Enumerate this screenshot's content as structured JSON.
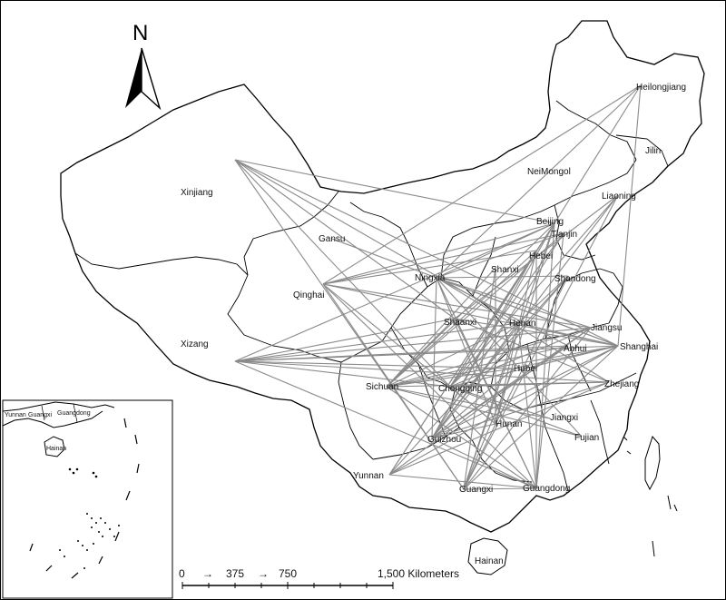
{
  "north_arrow": {
    "label": "N"
  },
  "scale_bar": {
    "ticks": [
      "0",
      "375",
      "750",
      "1,500 Kilometers"
    ],
    "arrow_glyph": "→"
  },
  "provinces": [
    {
      "id": "heilongjiang",
      "name": "Heilongjiang"
    },
    {
      "id": "jilin",
      "name": "Jilin"
    },
    {
      "id": "liaoning",
      "name": "Liaoning"
    },
    {
      "id": "neimongol",
      "name": "NeiMongol"
    },
    {
      "id": "xinjiang",
      "name": "Xinjiang"
    },
    {
      "id": "gansu",
      "name": "Gansu"
    },
    {
      "id": "qinghai",
      "name": "Qinghai"
    },
    {
      "id": "xizang",
      "name": "Xizang"
    },
    {
      "id": "beijing",
      "name": "Beijing"
    },
    {
      "id": "tianjin",
      "name": "Tianjin"
    },
    {
      "id": "hebei",
      "name": "Hebei"
    },
    {
      "id": "shanxi",
      "name": "Shanxi"
    },
    {
      "id": "shandong",
      "name": "Shandong"
    },
    {
      "id": "ningxia",
      "name": "Ningxia"
    },
    {
      "id": "shaanxi",
      "name": "Shaanxi"
    },
    {
      "id": "henan",
      "name": "Henan"
    },
    {
      "id": "jiangsu",
      "name": "Jiangsu"
    },
    {
      "id": "anhui",
      "name": "Anhui"
    },
    {
      "id": "shanghai",
      "name": "Shanghai"
    },
    {
      "id": "hubei",
      "name": "Hubei"
    },
    {
      "id": "zhejiang",
      "name": "Zhejiang"
    },
    {
      "id": "sichuan",
      "name": "Sichuan"
    },
    {
      "id": "chongqing",
      "name": "Chongqing"
    },
    {
      "id": "hunan",
      "name": "Hunan"
    },
    {
      "id": "jiangxi",
      "name": "Jiangxi"
    },
    {
      "id": "fujian",
      "name": "Fujian"
    },
    {
      "id": "guizhou",
      "name": "Guizhou"
    },
    {
      "id": "yunnan",
      "name": "Yunnan"
    },
    {
      "id": "guangxi",
      "name": "Guangxi"
    },
    {
      "id": "guangdong",
      "name": "Guangdong"
    },
    {
      "id": "hainan",
      "name": "Hainan"
    }
  ],
  "inset_map": {
    "labels": [
      "Yunnan",
      "Guangxi",
      "Guangdong",
      "Hainan"
    ]
  },
  "colors": {
    "flow_line": "#8a8a8a",
    "boundary": "#000000",
    "land": "#ffffff"
  },
  "flows": [
    [
      "xizang",
      "shanghai"
    ],
    [
      "xizang",
      "jiangsu"
    ],
    [
      "xizang",
      "beijing"
    ],
    [
      "xizang",
      "hubei"
    ],
    [
      "xizang",
      "chongqing"
    ],
    [
      "xizang",
      "guangdong"
    ],
    [
      "xizang",
      "zhejiang"
    ],
    [
      "xizang",
      "anhui"
    ],
    [
      "xizang",
      "shaanxi"
    ],
    [
      "xizang",
      "henan"
    ],
    [
      "xinjiang",
      "shanghai"
    ],
    [
      "xinjiang",
      "beijing"
    ],
    [
      "xinjiang",
      "chongqing"
    ],
    [
      "xinjiang",
      "shaanxi"
    ],
    [
      "xinjiang",
      "henan"
    ],
    [
      "xinjiang",
      "guangxi"
    ],
    [
      "heilongjiang",
      "shanghai"
    ],
    [
      "heilongjiang",
      "ningxia"
    ],
    [
      "heilongjiang",
      "qinghai"
    ],
    [
      "heilongjiang",
      "beijing"
    ],
    [
      "qinghai",
      "shanghai"
    ],
    [
      "qinghai",
      "beijing"
    ],
    [
      "qinghai",
      "guangdong"
    ],
    [
      "qinghai",
      "guangxi"
    ],
    [
      "qinghai",
      "tianjin"
    ],
    [
      "qinghai",
      "hunan"
    ],
    [
      "qinghai",
      "jiangsu"
    ],
    [
      "qinghai",
      "hebei"
    ],
    [
      "yunnan",
      "beijing"
    ],
    [
      "yunnan",
      "shanghai"
    ],
    [
      "yunnan",
      "shandong"
    ],
    [
      "yunnan",
      "hebei"
    ],
    [
      "yunnan",
      "jiangsu"
    ],
    [
      "yunnan",
      "guangdong"
    ],
    [
      "yunnan",
      "zhejiang"
    ],
    [
      "liaoning",
      "chongqing"
    ],
    [
      "liaoning",
      "guizhou"
    ],
    [
      "liaoning",
      "guangxi"
    ],
    [
      "liaoning",
      "shaanxi"
    ],
    [
      "beijing",
      "guangdong"
    ],
    [
      "beijing",
      "guangxi"
    ],
    [
      "beijing",
      "chongqing"
    ],
    [
      "beijing",
      "sichuan"
    ],
    [
      "beijing",
      "hunan"
    ],
    [
      "beijing",
      "ningxia"
    ],
    [
      "beijing",
      "guizhou"
    ],
    [
      "tianjin",
      "guangdong"
    ],
    [
      "tianjin",
      "sichuan"
    ],
    [
      "tianjin",
      "ningxia"
    ],
    [
      "tianjin",
      "chongqing"
    ],
    [
      "tianjin",
      "guizhou"
    ],
    [
      "shanghai",
      "ningxia"
    ],
    [
      "shanghai",
      "sichuan"
    ],
    [
      "shanghai",
      "chongqing"
    ],
    [
      "shanghai",
      "guangxi"
    ],
    [
      "shanghai",
      "guizhou"
    ],
    [
      "shanghai",
      "hubei"
    ],
    [
      "shanghai",
      "henan"
    ],
    [
      "shanghai",
      "shaanxi"
    ],
    [
      "shanghai",
      "gansu"
    ],
    [
      "jiangsu",
      "ningxia"
    ],
    [
      "jiangsu",
      "chongqing"
    ],
    [
      "jiangsu",
      "guizhou"
    ],
    [
      "jiangsu",
      "sichuan"
    ],
    [
      "jiangsu",
      "guangxi"
    ],
    [
      "zhejiang",
      "ningxia"
    ],
    [
      "zhejiang",
      "chongqing"
    ],
    [
      "zhejiang",
      "guizhou"
    ],
    [
      "zhejiang",
      "sichuan"
    ],
    [
      "zhejiang",
      "shaanxi"
    ],
    [
      "shandong",
      "guizhou"
    ],
    [
      "shandong",
      "chongqing"
    ],
    [
      "shandong",
      "ningxia"
    ],
    [
      "shandong",
      "guangxi"
    ],
    [
      "guangdong",
      "ningxia"
    ],
    [
      "guangdong",
      "shaanxi"
    ],
    [
      "guangdong",
      "hebei"
    ],
    [
      "guangdong",
      "henan"
    ],
    [
      "fujian",
      "ningxia"
    ],
    [
      "fujian",
      "chongqing"
    ],
    [
      "fujian",
      "sichuan"
    ],
    [
      "hebei",
      "guizhou"
    ],
    [
      "hebei",
      "chongqing"
    ],
    [
      "hebei",
      "hunan"
    ],
    [
      "hebei",
      "sichuan"
    ],
    [
      "shanxi",
      "hunan"
    ],
    [
      "shanxi",
      "guangxi"
    ],
    [
      "shanxi",
      "sichuan"
    ],
    [
      "ningxia",
      "hunan"
    ],
    [
      "ningxia",
      "guizhou"
    ],
    [
      "ningxia",
      "anhui"
    ],
    [
      "sichuan",
      "shaanxi"
    ],
    [
      "sichuan",
      "henan"
    ],
    [
      "sichuan",
      "hubei"
    ],
    [
      "sichuan",
      "guangdong"
    ],
    [
      "hubei",
      "guizhou"
    ],
    [
      "hubei",
      "guangxi"
    ],
    [
      "henan",
      "guangxi"
    ],
    [
      "henan",
      "guizhou"
    ],
    [
      "anhui",
      "guizhou"
    ],
    [
      "anhui",
      "sichuan"
    ],
    [
      "jiangxi",
      "chongqing"
    ],
    [
      "jiangxi",
      "sichuan"
    ],
    [
      "hunan",
      "chongqing"
    ],
    [
      "guizhou",
      "guangdong"
    ],
    [
      "guangxi",
      "guangdong"
    ],
    [
      "guizhou",
      "hunan"
    ]
  ]
}
